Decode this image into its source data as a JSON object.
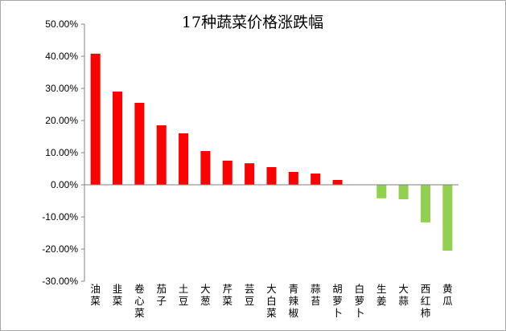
{
  "chart_data": {
    "type": "bar",
    "title": "17种蔬菜价格涨跌幅",
    "xlabel": "",
    "ylabel": "",
    "ylim": [
      -0.3,
      0.5
    ],
    "ytick_step": 0.1,
    "ytick_labels": [
      "50.00%",
      "40.00%",
      "30.00%",
      "20.00%",
      "10.00%",
      "0.00%",
      "-10.00%",
      "-20.00%",
      "-30.00%"
    ],
    "categories": [
      "油菜",
      "韭菜",
      "卷心菜",
      "茄子",
      "土豆",
      "大葱",
      "芹菜",
      "芸豆",
      "大白菜",
      "青辣椒",
      "蒜苔",
      "胡萝卜",
      "白萝卜",
      "生姜",
      "大蒜",
      "西红柿",
      "黄瓜"
    ],
    "values": [
      0.408,
      0.29,
      0.255,
      0.185,
      0.16,
      0.105,
      0.075,
      0.067,
      0.055,
      0.04,
      0.035,
      0.015,
      0.0,
      -0.042,
      -0.045,
      -0.117,
      -0.205
    ],
    "positive_color": "#ff0000",
    "negative_color": "#92d050",
    "grid": false,
    "legend": "none"
  }
}
